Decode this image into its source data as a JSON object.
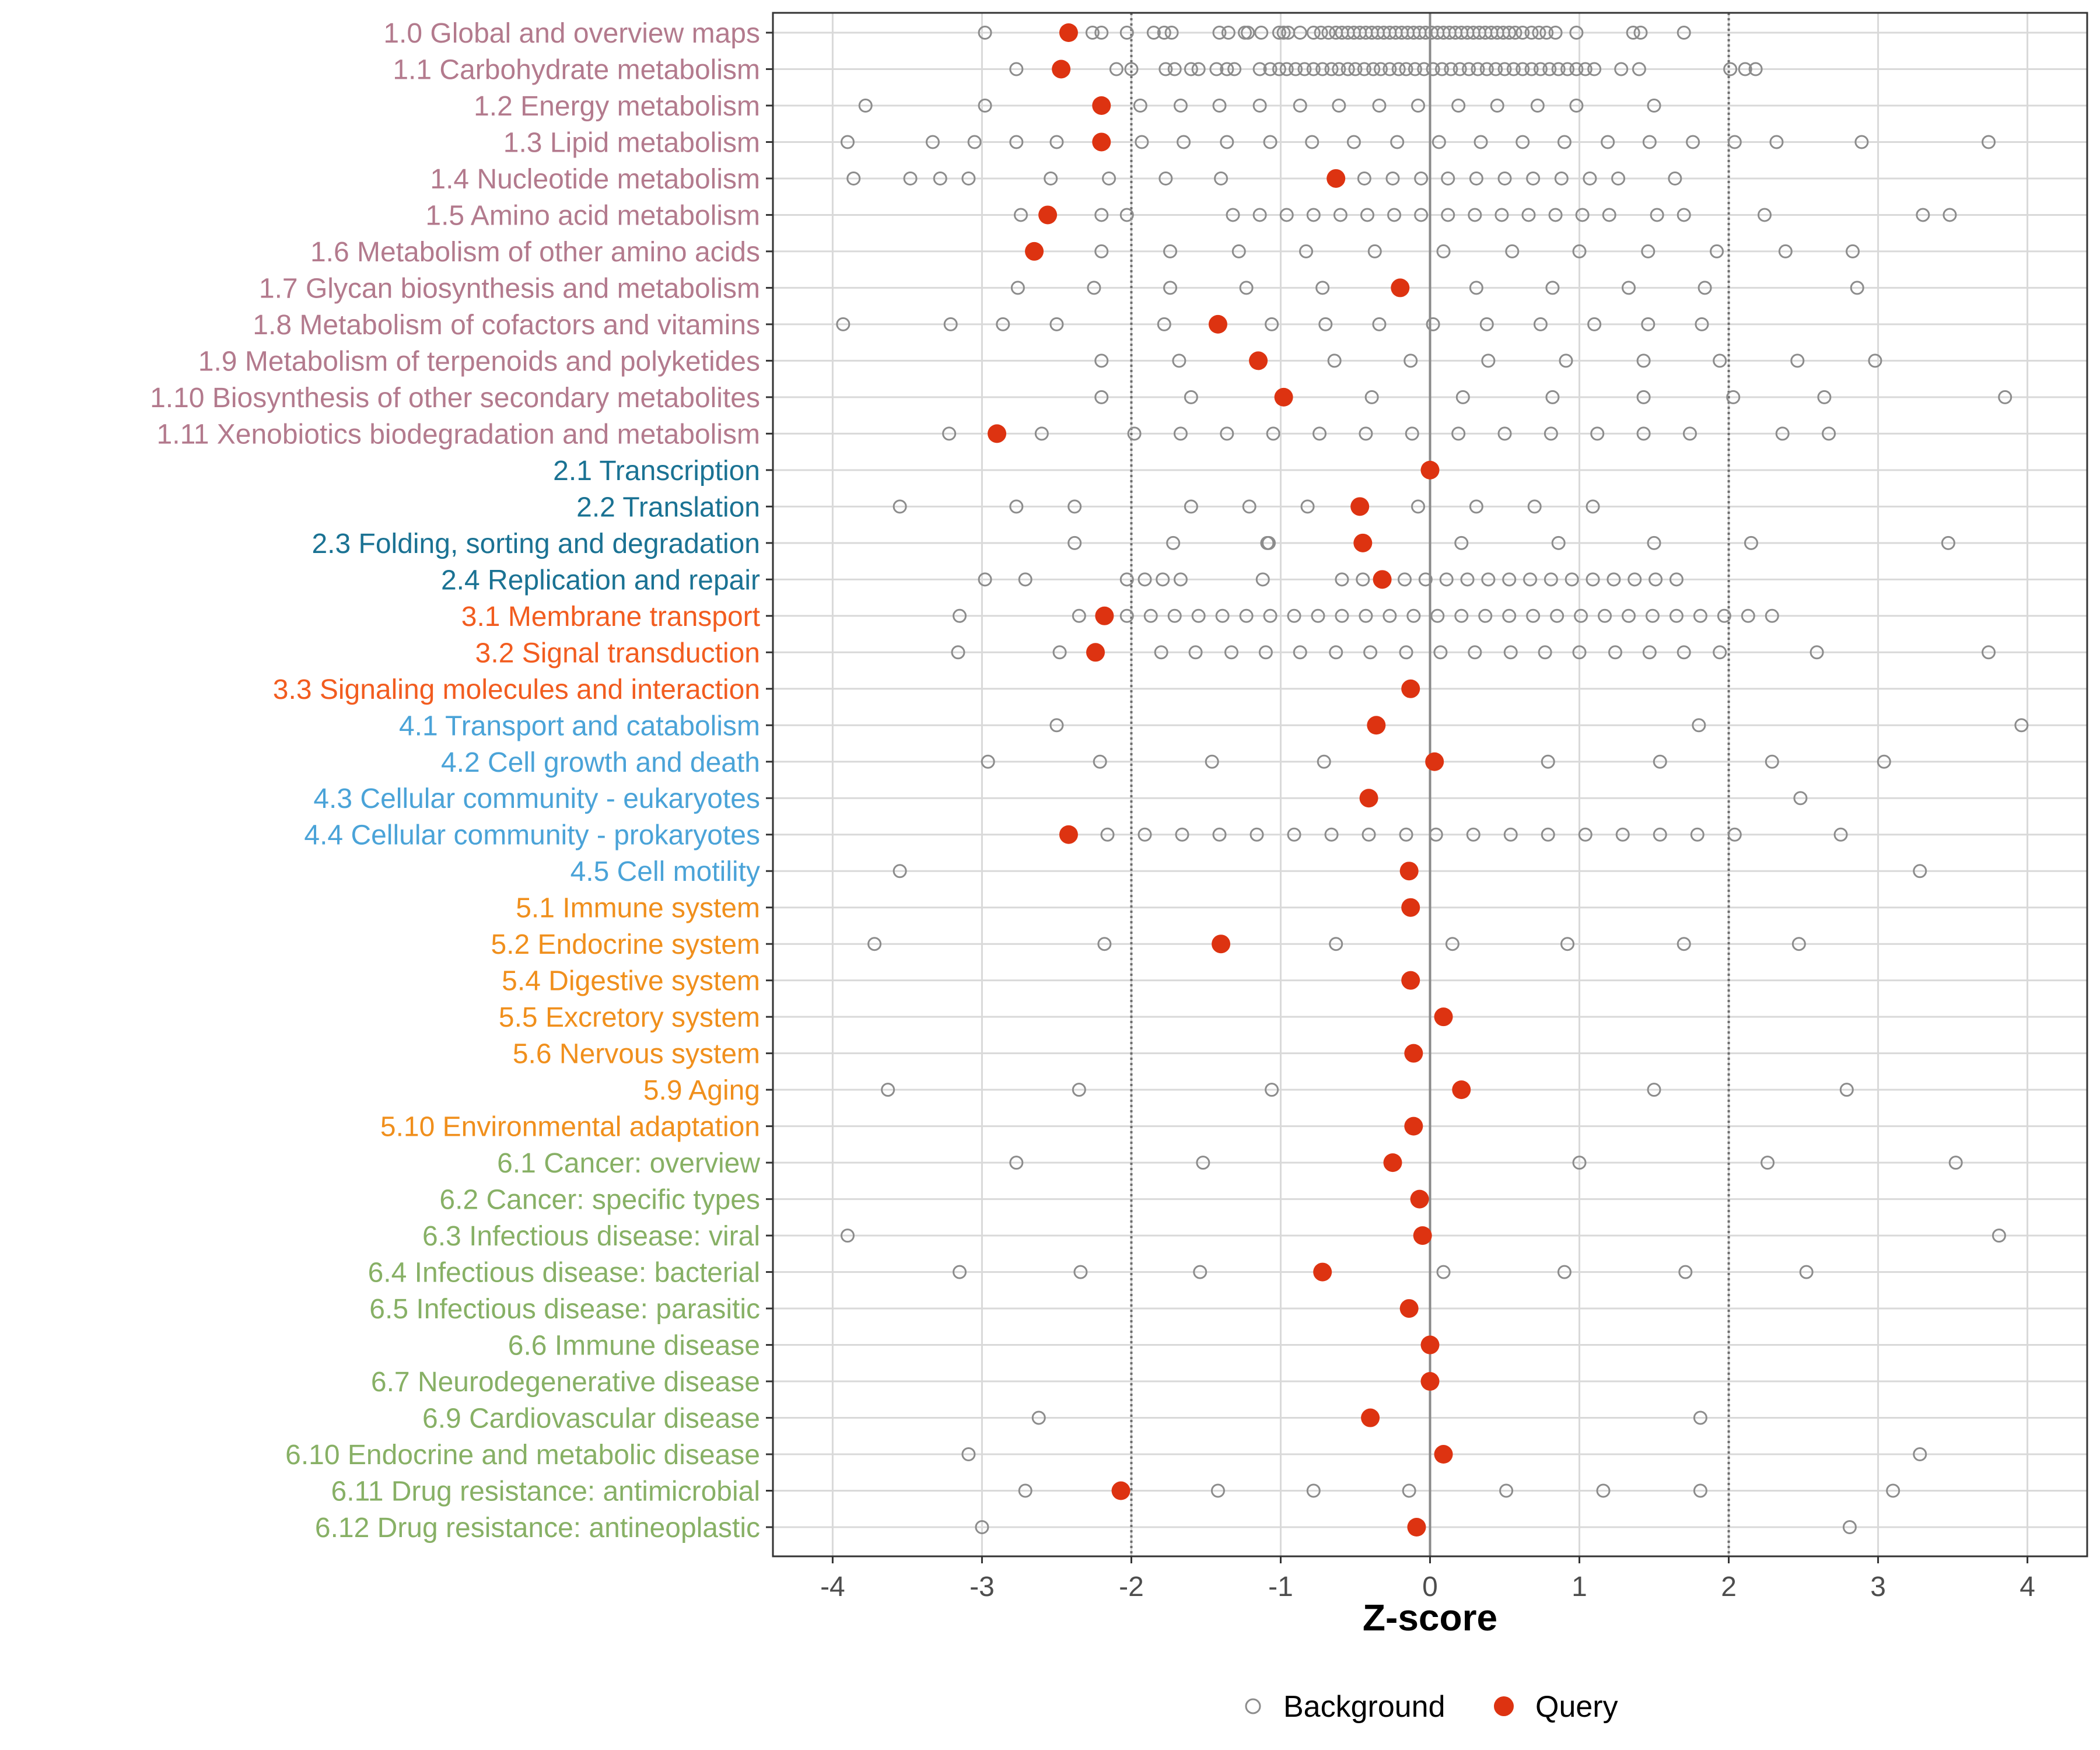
{
  "chart_data": {
    "type": "scatter",
    "xlabel": "Z-score",
    "xlim": [
      -4.4,
      4.4
    ],
    "xticks": [
      -4,
      -3,
      -2,
      -1,
      0,
      1,
      2,
      3,
      4
    ],
    "reference_lines": [
      -2,
      0,
      2
    ],
    "legend": [
      {
        "name": "Background",
        "style": "open-circle",
        "color": "#8c8c8c"
      },
      {
        "name": "Query",
        "style": "filled-circle",
        "color": "#dd3311"
      }
    ],
    "group_colors": {
      "1": "#b37a8d",
      "2": "#1a7293",
      "3": "#f25c1f",
      "4": "#4aa3d8",
      "5": "#f08f1c",
      "6": "#87b065"
    },
    "categories": [
      {
        "label": "1.0 Global and overview maps",
        "group": "1",
        "query": -2.42
      },
      {
        "label": "1.1 Carbohydrate metabolism",
        "group": "1",
        "query": -2.47
      },
      {
        "label": "1.2 Energy metabolism",
        "group": "1",
        "query": -2.2
      },
      {
        "label": "1.3 Lipid metabolism",
        "group": "1",
        "query": -2.2
      },
      {
        "label": "1.4 Nucleotide metabolism",
        "group": "1",
        "query": -0.63
      },
      {
        "label": "1.5 Amino acid metabolism",
        "group": "1",
        "query": -2.56
      },
      {
        "label": "1.6 Metabolism of other amino acids",
        "group": "1",
        "query": -2.65
      },
      {
        "label": "1.7 Glycan biosynthesis and metabolism",
        "group": "1",
        "query": -0.2
      },
      {
        "label": "1.8 Metabolism of cofactors and vitamins",
        "group": "1",
        "query": -1.42
      },
      {
        "label": "1.9 Metabolism of terpenoids and polyketides",
        "group": "1",
        "query": -1.15
      },
      {
        "label": "1.10 Biosynthesis of other secondary metabolites",
        "group": "1",
        "query": -0.98
      },
      {
        "label": "1.11 Xenobiotics biodegradation and metabolism",
        "group": "1",
        "query": -2.9
      },
      {
        "label": "2.1 Transcription",
        "group": "2",
        "query": 0.0
      },
      {
        "label": "2.2 Translation",
        "group": "2",
        "query": -0.47
      },
      {
        "label": "2.3 Folding, sorting and degradation",
        "group": "2",
        "query": -0.45
      },
      {
        "label": "2.4 Replication and repair",
        "group": "2",
        "query": -0.32
      },
      {
        "label": "3.1 Membrane transport",
        "group": "3",
        "query": -2.18
      },
      {
        "label": "3.2 Signal transduction",
        "group": "3",
        "query": -2.24
      },
      {
        "label": "3.3 Signaling molecules and interaction",
        "group": "3",
        "query": -0.13
      },
      {
        "label": "4.1 Transport and catabolism",
        "group": "4",
        "query": -0.36
      },
      {
        "label": "4.2 Cell growth and death",
        "group": "4",
        "query": 0.03
      },
      {
        "label": "4.3 Cellular community - eukaryotes",
        "group": "4",
        "query": -0.41
      },
      {
        "label": "4.4 Cellular community - prokaryotes",
        "group": "4",
        "query": -2.42
      },
      {
        "label": "4.5 Cell motility",
        "group": "4",
        "query": -0.14
      },
      {
        "label": "5.1 Immune system",
        "group": "5",
        "query": -0.13
      },
      {
        "label": "5.2 Endocrine system",
        "group": "5",
        "query": -1.4
      },
      {
        "label": "5.4 Digestive system",
        "group": "5",
        "query": -0.13
      },
      {
        "label": "5.5 Excretory system",
        "group": "5",
        "query": 0.09
      },
      {
        "label": "5.6 Nervous system",
        "group": "5",
        "query": -0.11
      },
      {
        "label": "5.9 Aging",
        "group": "5",
        "query": 0.21
      },
      {
        "label": "5.10 Environmental adaptation",
        "group": "5",
        "query": -0.11
      },
      {
        "label": "6.1 Cancer: overview",
        "group": "6",
        "query": -0.25
      },
      {
        "label": "6.2 Cancer: specific types",
        "group": "6",
        "query": -0.07
      },
      {
        "label": "6.3 Infectious disease: viral",
        "group": "6",
        "query": -0.05
      },
      {
        "label": "6.4 Infectious disease: bacterial",
        "group": "6",
        "query": -0.72
      },
      {
        "label": "6.5 Infectious disease: parasitic",
        "group": "6",
        "query": -0.14
      },
      {
        "label": "6.6 Immune disease",
        "group": "6",
        "query": 0.0
      },
      {
        "label": "6.7 Neurodegenerative disease",
        "group": "6",
        "query": 0.0
      },
      {
        "label": "6.9 Cardiovascular disease",
        "group": "6",
        "query": -0.4
      },
      {
        "label": "6.10 Endocrine and metabolic disease",
        "group": "6",
        "query": 0.09
      },
      {
        "label": "6.11 Drug resistance: antimicrobial",
        "group": "6",
        "query": -2.07
      },
      {
        "label": "6.12 Drug resistance: antineoplastic",
        "group": "6",
        "query": -0.09
      }
    ],
    "background": [
      [
        -2.98,
        -2.26,
        -2.2,
        -2.03,
        -1.85,
        -1.78,
        -1.73,
        -1.41,
        -1.35,
        -1.24,
        -1.22,
        -1.13,
        -1.01,
        -0.98,
        -0.95,
        -0.87,
        -0.78,
        -0.73,
        -0.68,
        -0.63,
        -0.59,
        -0.55,
        -0.51,
        -0.47,
        -0.43,
        -0.39,
        -0.35,
        -0.31,
        -0.27,
        -0.23,
        -0.19,
        -0.15,
        -0.11,
        -0.07,
        -0.03,
        0.01,
        0.05,
        0.09,
        0.13,
        0.17,
        0.21,
        0.25,
        0.29,
        0.33,
        0.37,
        0.41,
        0.45,
        0.49,
        0.53,
        0.57,
        0.62,
        0.68,
        0.73,
        0.78,
        0.84,
        0.98,
        1.36,
        1.41,
        1.7
      ],
      [
        -2.77,
        -2.1,
        -2.0,
        -1.77,
        -1.71,
        -1.6,
        -1.55,
        -1.43,
        -1.36,
        -1.31,
        -1.14,
        -1.07,
        -1.01,
        -0.96,
        -0.9,
        -0.84,
        -0.78,
        -0.72,
        -0.66,
        -0.61,
        -0.55,
        -0.5,
        -0.44,
        -0.38,
        -0.33,
        -0.27,
        -0.21,
        -0.16,
        -0.1,
        -0.04,
        0.02,
        0.08,
        0.14,
        0.2,
        0.26,
        0.32,
        0.38,
        0.44,
        0.5,
        0.56,
        0.62,
        0.68,
        0.74,
        0.8,
        0.86,
        0.92,
        0.98,
        1.04,
        1.1,
        1.28,
        1.4,
        2.01,
        2.11,
        2.18
      ],
      [
        -3.78,
        -2.98,
        -1.94,
        -1.67,
        -1.41,
        -1.14,
        -0.87,
        -0.61,
        -0.34,
        -0.08,
        0.19,
        0.45,
        0.72,
        0.98,
        1.5
      ],
      [
        -3.9,
        -3.33,
        -3.05,
        -2.77,
        -2.5,
        -1.93,
        -1.65,
        -1.36,
        -1.07,
        -0.79,
        -0.51,
        -0.22,
        0.06,
        0.34,
        0.62,
        0.9,
        1.19,
        1.47,
        1.76,
        2.04,
        2.32,
        2.89,
        3.74
      ],
      [
        -3.86,
        -3.48,
        -3.28,
        -3.09,
        -2.54,
        -2.15,
        -1.77,
        -1.4,
        -0.44,
        -0.25,
        -0.06,
        0.12,
        0.31,
        0.5,
        0.69,
        0.88,
        1.07,
        1.26,
        1.64
      ],
      [
        -2.74,
        -2.2,
        -2.03,
        -1.32,
        -1.14,
        -0.96,
        -0.78,
        -0.6,
        -0.42,
        -0.24,
        -0.06,
        0.12,
        0.3,
        0.48,
        0.66,
        0.84,
        1.02,
        1.2,
        1.52,
        1.7,
        2.24,
        3.3,
        3.48
      ],
      [
        -2.2,
        -1.74,
        -1.28,
        -0.83,
        -0.37,
        0.09,
        0.55,
        1.0,
        1.46,
        1.92,
        2.38,
        2.83
      ],
      [
        -2.76,
        -2.25,
        -1.74,
        -1.23,
        -0.72,
        0.31,
        0.82,
        1.33,
        1.84,
        2.86
      ],
      [
        -3.93,
        -3.21,
        -2.86,
        -2.5,
        -1.78,
        -1.06,
        -0.7,
        -0.34,
        0.02,
        0.38,
        0.74,
        1.1,
        1.46,
        1.82
      ],
      [
        -2.2,
        -1.68,
        -0.64,
        -0.13,
        0.39,
        0.91,
        1.43,
        1.94,
        2.46,
        2.98
      ],
      [
        -2.2,
        -1.6,
        -0.39,
        0.22,
        0.82,
        1.43,
        2.03,
        2.64,
        3.85
      ],
      [
        -3.22,
        -2.6,
        -1.98,
        -1.67,
        -1.36,
        -1.05,
        -0.74,
        -0.43,
        -0.12,
        0.19,
        0.5,
        0.81,
        1.12,
        1.43,
        1.74,
        2.36,
        2.67
      ],
      [],
      [
        -3.55,
        -2.77,
        -2.38,
        -1.6,
        -1.21,
        -0.82,
        -0.08,
        0.31,
        0.7,
        1.09
      ],
      [
        -2.38,
        -1.72,
        -1.09,
        -1.08,
        0.21,
        0.86,
        1.5,
        2.15,
        3.47
      ],
      [
        -2.98,
        -2.71,
        -2.03,
        -1.91,
        -1.79,
        -1.67,
        -1.12,
        -0.59,
        -0.45,
        -0.31,
        -0.17,
        -0.03,
        0.11,
        0.25,
        0.39,
        0.53,
        0.67,
        0.81,
        0.95,
        1.09,
        1.23,
        1.37,
        1.51,
        1.65
      ],
      [
        -3.15,
        -2.35,
        -2.03,
        -1.87,
        -1.71,
        -1.55,
        -1.39,
        -1.23,
        -1.07,
        -0.91,
        -0.75,
        -0.59,
        -0.43,
        -0.27,
        -0.11,
        0.05,
        0.21,
        0.37,
        0.53,
        0.69,
        0.85,
        1.01,
        1.17,
        1.33,
        1.49,
        1.65,
        1.81,
        1.97,
        2.13,
        2.29
      ],
      [
        -3.16,
        -2.48,
        -1.8,
        -1.57,
        -1.33,
        -1.1,
        -0.87,
        -0.63,
        -0.4,
        -0.16,
        0.07,
        0.3,
        0.54,
        0.77,
        1.0,
        1.24,
        1.47,
        1.7,
        1.94,
        2.59,
        3.74
      ],
      [],
      [
        -2.5,
        1.8,
        3.96
      ],
      [
        -2.96,
        -2.21,
        -1.46,
        -0.71,
        0.79,
        1.54,
        2.29,
        3.04
      ],
      [
        2.48
      ],
      [
        -2.16,
        -1.91,
        -1.66,
        -1.41,
        -1.16,
        -0.91,
        -0.66,
        -0.41,
        -0.16,
        0.04,
        0.29,
        0.54,
        0.79,
        1.04,
        1.29,
        1.54,
        1.79,
        2.04,
        2.75
      ],
      [
        -3.55,
        3.28
      ],
      [],
      [
        -3.72,
        -2.18,
        -0.63,
        0.15,
        0.92,
        1.7,
        2.47
      ],
      [],
      [],
      [],
      [
        -3.63,
        -2.35,
        -1.06,
        1.5,
        2.79
      ],
      [],
      [
        -2.77,
        -1.52,
        1.0,
        2.26,
        3.52
      ],
      [],
      [
        -3.9,
        3.81
      ],
      [
        -3.15,
        -2.34,
        -1.54,
        0.09,
        0.9,
        1.71,
        2.52
      ],
      [],
      [],
      [],
      [
        -2.62,
        1.81
      ],
      [
        -3.09,
        3.28
      ],
      [
        -2.71,
        -1.42,
        -0.78,
        -0.14,
        0.51,
        1.16,
        1.81,
        3.1
      ],
      [
        -3.0,
        2.81
      ]
    ]
  }
}
